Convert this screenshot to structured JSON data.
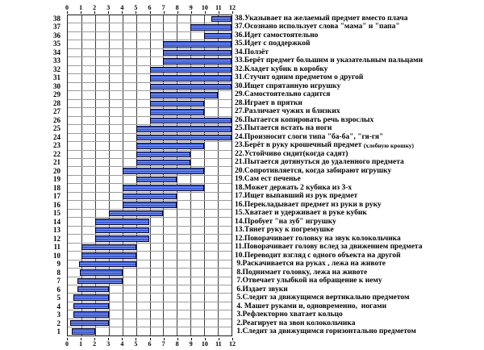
{
  "colors": {
    "bar": "#3f5fd8",
    "bar_border": "#000028",
    "grid_vertical": "#404040",
    "grid_horizontal": "#9c9c9c",
    "plot_border": "#1a1a1a",
    "background": "#ffffff",
    "text": "#000000"
  },
  "chart_data": {
    "type": "bar",
    "orientation": "horizontal",
    "title": "",
    "xlabel": "",
    "ylabel": "",
    "xlim": [
      0,
      12
    ],
    "x_ticks": [
      "0",
      "1",
      "2",
      "3",
      "4",
      "5",
      "6",
      "7",
      "8",
      "9",
      "10",
      "11",
      "12"
    ],
    "grid": "on",
    "legend": "none",
    "rows": [
      {
        "num": "38",
        "label": "38.Указывает на желаемый предмет вместо плача",
        "start": 10.5,
        "end": 12
      },
      {
        "num": "37",
        "label": "37.Осознано использует слова \"мама\" и \"папа\"",
        "start": 9,
        "end": 12
      },
      {
        "num": "36",
        "label": "36.Идет самостоятельно",
        "start": 10,
        "end": 12
      },
      {
        "num": "35",
        "label": "35.Идет с поддержкой",
        "start": 7,
        "end": 12
      },
      {
        "num": "34",
        "label": "34.Ползёт",
        "start": 7,
        "end": 12
      },
      {
        "num": "33",
        "label": "33.Берёт предмет большим и указательным пальцами",
        "start": 7,
        "end": 12
      },
      {
        "num": "32",
        "label": "32.Кладет кубик в коробку",
        "start": 6,
        "end": 12
      },
      {
        "num": "31",
        "label": "31.Стучит одним предметом о другой",
        "start": 6,
        "end": 12
      },
      {
        "num": "30",
        "label": "30.Ищет спрятанную игрушку",
        "start": 6,
        "end": 12
      },
      {
        "num": "29",
        "label": "29.Самостоятельно садится",
        "start": 6,
        "end": 11
      },
      {
        "num": "28",
        "label": "28.Играет в прятки",
        "start": 6,
        "end": 10
      },
      {
        "num": "27",
        "label": "27.Различает чужих и близких",
        "start": 6,
        "end": 10
      },
      {
        "num": "26",
        "label": "26.Пытается копировать речь взрослых",
        "start": 6,
        "end": 12
      },
      {
        "num": "25",
        "label": "25.Пытается встать на ноги",
        "start": 5,
        "end": 12
      },
      {
        "num": "24",
        "label": "24.Произносит слоги типа \"ба-ба\", \"гя-гя\"",
        "start": 5,
        "end": 12
      },
      {
        "num": "23",
        "label": "23.Берёт в руку крошечный предмет ",
        "note": "(хлебную крошку)",
        "start": 5,
        "end": 10
      },
      {
        "num": "22",
        "label": "22.Устойчиво сидит(когда садят)",
        "start": 5,
        "end": 9
      },
      {
        "num": "21",
        "label": "21.Пытается дотянуться до удаленного предмета",
        "start": 5,
        "end": 9
      },
      {
        "num": "20",
        "label": "20.Сопротивляется, когда забирают игрушку",
        "start": 4,
        "end": 10
      },
      {
        "num": "19",
        "label": "19.Сам ест печенье",
        "start": 5,
        "end": 8
      },
      {
        "num": "18",
        "label": "18.Может держать 2 кубика из 3-х",
        "start": 4,
        "end": 10
      },
      {
        "num": "17",
        "label": "17.Ищет выпавший из рук предмет",
        "start": 4,
        "end": 8
      },
      {
        "num": "16",
        "label": "16.Перекладывает предмет из руки в руку",
        "start": 4,
        "end": 8
      },
      {
        "num": "15",
        "label": "15.Хватает и удерживает в руке кубик",
        "start": 3,
        "end": 7
      },
      {
        "num": "14",
        "label": "14.Пробует \"на зуб\" игрушку",
        "start": 2,
        "end": 6
      },
      {
        "num": "13",
        "label": "13.Тянет руку к погремушке",
        "start": 2,
        "end": 6
      },
      {
        "num": "12",
        "label": "12.Поворачивает головку на звук колокольчика",
        "start": 2,
        "end": 6
      },
      {
        "num": "11",
        "label": "11.Поворачивает голову вслед за движением предмета",
        "start": 1,
        "end": 5
      },
      {
        "num": "10",
        "label": "10.Переводит взгляд с одного объекта на другой",
        "start": 1,
        "end": 5
      },
      {
        "num": "9",
        "label": " 9.Раскачивается на руках , лежа на животе",
        "start": 0.8,
        "end": 5
      },
      {
        "num": "8",
        "label": " 8.Поднимает головку, лежа на животе",
        "start": 0.9,
        "end": 4
      },
      {
        "num": "7",
        "label": " 7.Отвечает улыбкой на обращение к нему",
        "start": 0.7,
        "end": 4
      },
      {
        "num": "6",
        "label": " 6.Издает звуки",
        "start": 0.7,
        "end": 3
      },
      {
        "num": "5",
        "label": " 5.Следит за движущимся вертикально предметом",
        "start": 0.4,
        "end": 3
      },
      {
        "num": "4",
        "label": " 4. Машет руками и, одновременно,  ногами",
        "start": 0.4,
        "end": 3
      },
      {
        "num": "3",
        "label": " 3.Рефлекторно хватает кольцо",
        "start": 0.4,
        "end": 3
      },
      {
        "num": "2",
        "label": " 2.Реагирует на звон колокольчика",
        "start": 0.2,
        "end": 3
      },
      {
        "num": "1",
        "label": " 1.Следит за движущимся горизонтально предметом",
        "start": 0.3,
        "end": 2
      }
    ]
  }
}
